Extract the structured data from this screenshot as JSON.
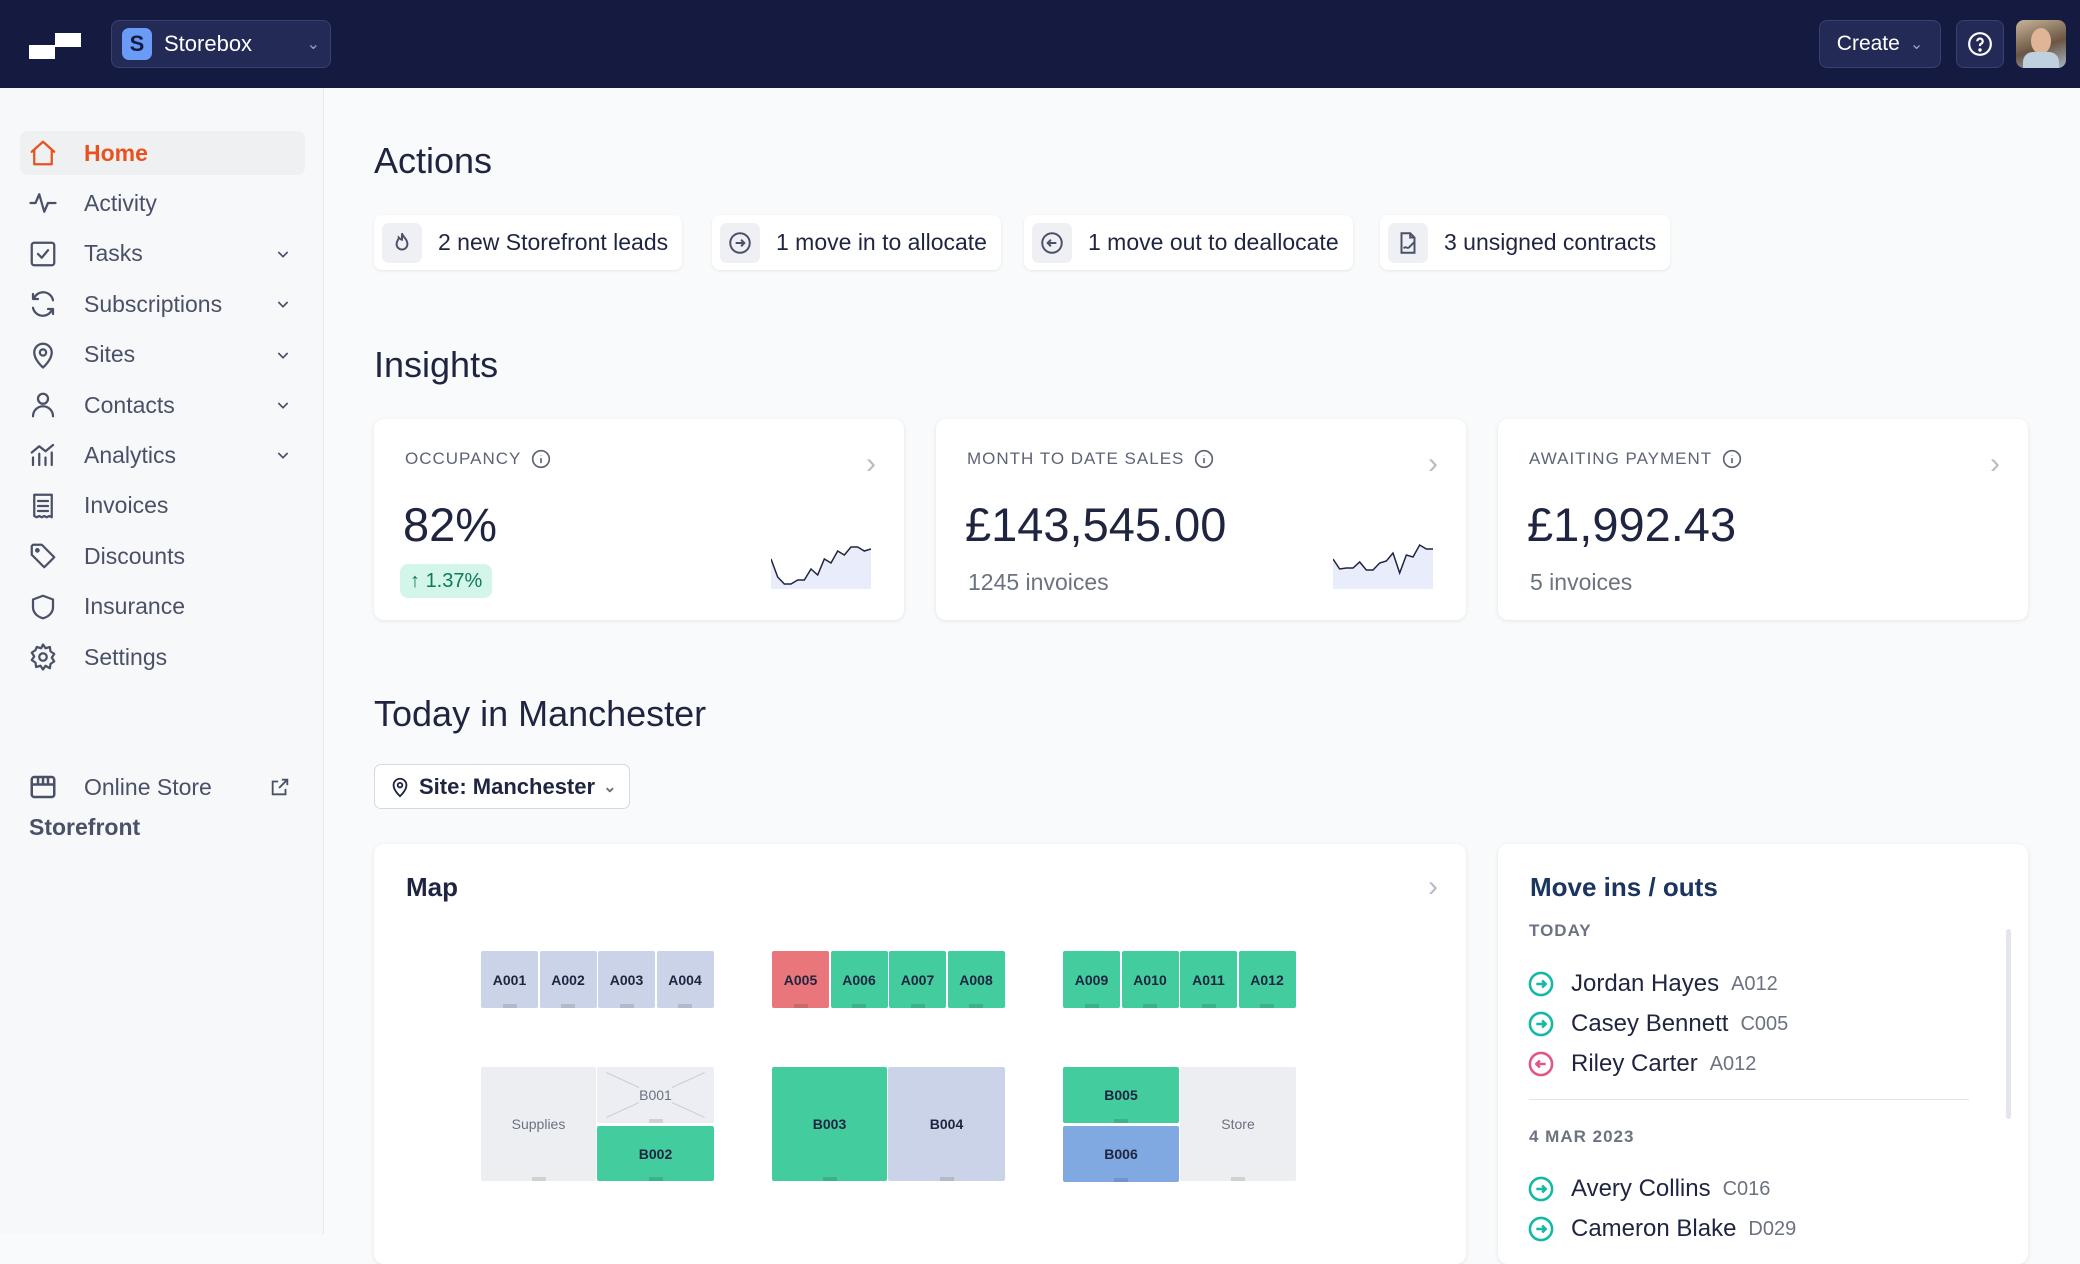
{
  "topbar": {
    "org_initial": "S",
    "org_name": "Storebox",
    "create_label": "Create"
  },
  "sidebar": {
    "items": [
      {
        "label": "Home",
        "icon": "home-icon",
        "active": true
      },
      {
        "label": "Activity",
        "icon": "activity-icon"
      },
      {
        "label": "Tasks",
        "icon": "tasks-icon",
        "expandable": true
      },
      {
        "label": "Subscriptions",
        "icon": "refresh-icon",
        "expandable": true
      },
      {
        "label": "Sites",
        "icon": "map-pin-icon",
        "expandable": true
      },
      {
        "label": "Contacts",
        "icon": "user-icon",
        "expandable": true
      },
      {
        "label": "Analytics",
        "icon": "chart-icon",
        "expandable": true
      },
      {
        "label": "Invoices",
        "icon": "receipt-icon"
      },
      {
        "label": "Discounts",
        "icon": "tag-icon"
      },
      {
        "label": "Insurance",
        "icon": "shield-icon"
      },
      {
        "label": "Settings",
        "icon": "gear-icon"
      }
    ],
    "storefront_heading": "Storefront",
    "online_store": "Online Store"
  },
  "actions": {
    "heading": "Actions",
    "chips": [
      {
        "label": "2 new Storefront leads",
        "icon": "flame-icon"
      },
      {
        "label": "1 move in to allocate",
        "icon": "arrow-right-circle-icon"
      },
      {
        "label": "1 move out to deallocate",
        "icon": "arrow-left-circle-icon"
      },
      {
        "label": "3 unsigned contracts",
        "icon": "signature-icon"
      }
    ]
  },
  "insights": {
    "heading": "Insights",
    "cards": [
      {
        "caption": "OCCUPANCY",
        "value": "82%",
        "delta": "1.37%",
        "delta_direction": "up"
      },
      {
        "caption": "MONTH TO DATE SALES",
        "value": "£143,545.00",
        "sub": "1245 invoices"
      },
      {
        "caption": "AWAITING PAYMENT",
        "value": "£1,992.43",
        "sub": "5 invoices"
      }
    ]
  },
  "today": {
    "heading": "Today in Manchester",
    "site_filter": "Site: Manchester"
  },
  "map": {
    "title": "Map",
    "units": {
      "A001": "available",
      "A002": "available",
      "A003": "available",
      "A004": "available",
      "A005": "overdue",
      "A006": "occupied",
      "A007": "occupied",
      "A008": "occupied",
      "A009": "occupied",
      "A010": "occupied",
      "A011": "occupied",
      "A012": "occupied",
      "Supplies": "non-rentable",
      "B001": "unavailable",
      "B002": "occupied",
      "B003": "occupied",
      "B004": "available",
      "B005": "occupied",
      "B006": "reserved",
      "Store": "non-rentable"
    },
    "colors": {
      "available": "#cbd3e8",
      "occupied": "#43cc9e",
      "overdue": "#e9767b",
      "reserved": "#80a9e1",
      "non-rentable": "#eceef1"
    }
  },
  "moves": {
    "title": "Move ins / outs",
    "groups": [
      {
        "label": "TODAY",
        "items": [
          {
            "name": "Jordan Hayes",
            "unit": "A012",
            "type": "in"
          },
          {
            "name": "Casey Bennett",
            "unit": "C005",
            "type": "in"
          },
          {
            "name": "Riley Carter",
            "unit": "A012",
            "type": "out"
          }
        ]
      },
      {
        "label": "4 MAR 2023",
        "items": [
          {
            "name": "Avery Collins",
            "unit": "C016",
            "type": "in"
          },
          {
            "name": "Cameron Blake",
            "unit": "D029",
            "type": "in"
          }
        ]
      }
    ],
    "colors": {
      "in": "#14b8a6",
      "out": "#e0558a"
    }
  }
}
